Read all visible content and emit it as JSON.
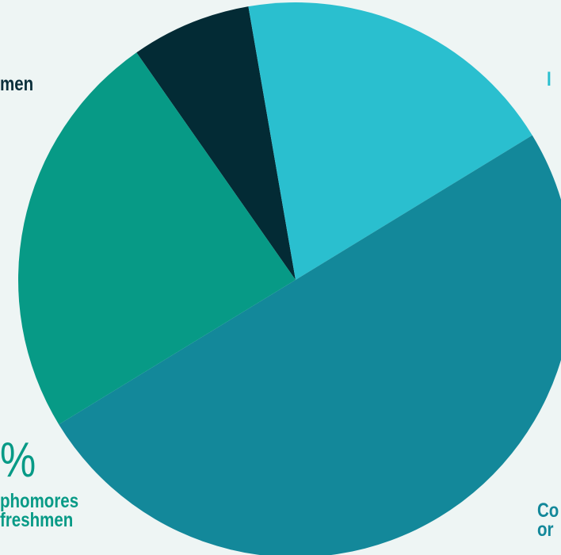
{
  "chart_data": {
    "type": "pie",
    "slices": [
      {
        "value": 7.0,
        "color": "#032b35"
      },
      {
        "value": 19.0,
        "color": "#2abfcf"
      },
      {
        "value": 50.0,
        "color": "#13889a"
      },
      {
        "value": 24.0,
        "color": "#079a86"
      }
    ],
    "start_angle_deg": -35,
    "labels": {
      "men_partial": "men",
      "percent_partial": "%",
      "sophomores_line1": "phomores",
      "sophomores_line2": "freshmen",
      "right_top_partial": "I",
      "co_line1": "Co",
      "co_line2": "or"
    }
  }
}
